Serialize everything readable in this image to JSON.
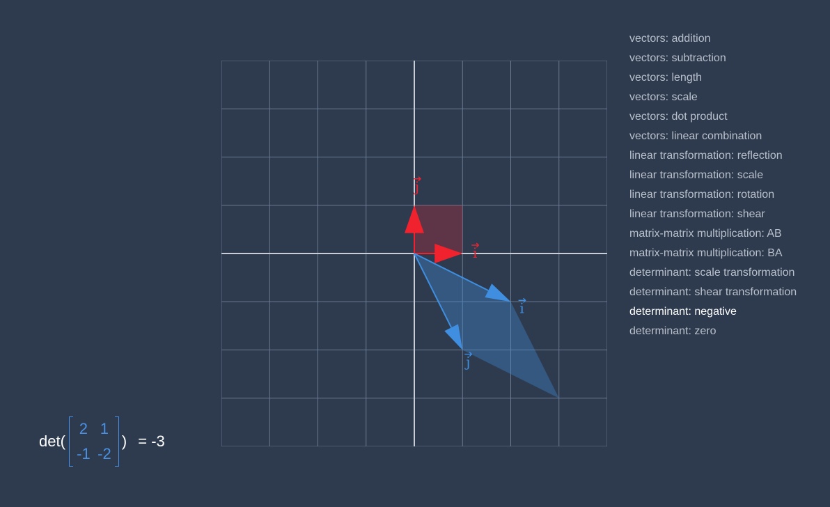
{
  "menu": {
    "items": [
      "vectors: addition",
      "vectors: subtraction",
      "vectors: length",
      "vectors: scale",
      "vectors: dot product",
      "vectors: linear combination",
      "linear transformation: reflection",
      "linear transformation: scale",
      "linear transformation: rotation",
      "linear transformation: shear",
      "matrix-matrix multiplication: AB",
      "matrix-matrix multiplication: BA",
      "determinant: scale transformation",
      "determinant: shear transformation",
      "determinant: negative",
      "determinant: zero"
    ],
    "active_index": 14
  },
  "formula": {
    "prefix": "det(",
    "matrix": [
      [
        "2",
        "1"
      ],
      [
        "-1",
        "-2"
      ]
    ],
    "suffix": ")",
    "result": "= -3"
  },
  "plot": {
    "range": [
      -4,
      4
    ],
    "colors": {
      "basis": "#f0222e",
      "transformed": "#3f8ee0",
      "axis": "#c8ced8",
      "grid": "#6a7a90"
    },
    "basis_vectors": [
      {
        "label": "i",
        "x": 1,
        "y": 0
      },
      {
        "label": "j",
        "x": 0,
        "y": 1
      }
    ],
    "transformed_vectors": [
      {
        "label": "i",
        "x": 2,
        "y": -1
      },
      {
        "label": "j",
        "x": 1,
        "y": -2
      }
    ]
  }
}
